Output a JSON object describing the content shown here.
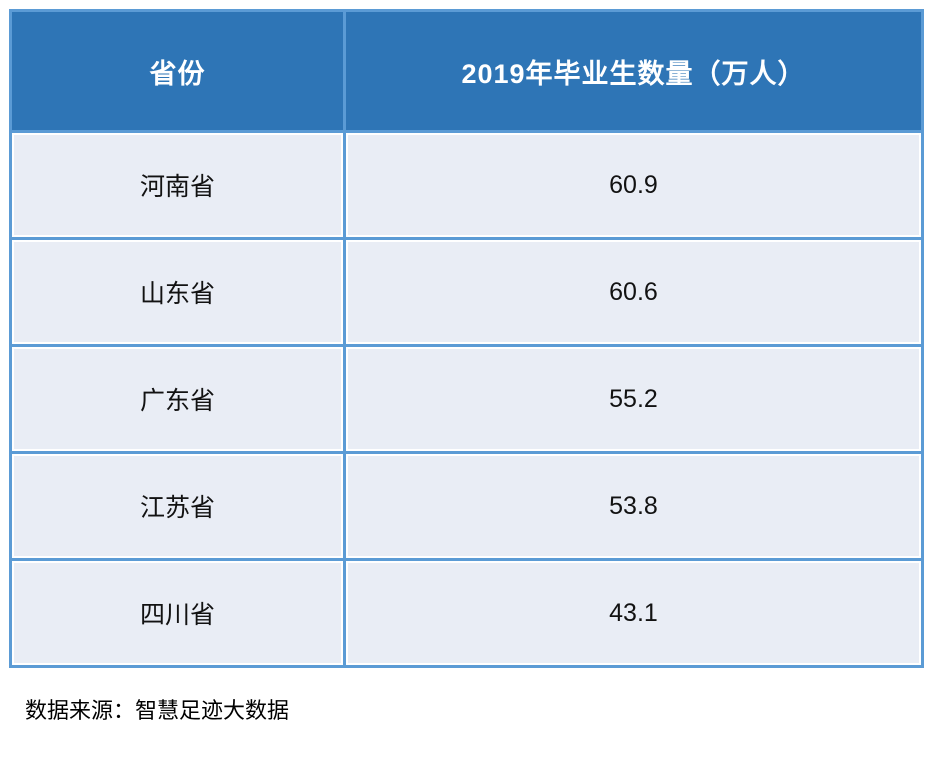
{
  "chart_data": {
    "type": "table",
    "title": "",
    "columns": [
      "省份",
      "2019年毕业生数量（万人）"
    ],
    "rows": [
      [
        "河南省",
        60.9
      ],
      [
        "山东省",
        60.6
      ],
      [
        "广东省",
        55.2
      ],
      [
        "江苏省",
        53.8
      ],
      [
        "四川省",
        43.1
      ]
    ],
    "source": "数据来源：智慧足迹大数据"
  },
  "table": {
    "header": {
      "province_label": "省份",
      "value_label": "2019年毕业生数量（万人）"
    },
    "rows": [
      {
        "province": "河南省",
        "value": "60.9"
      },
      {
        "province": "山东省",
        "value": "60.6"
      },
      {
        "province": "广东省",
        "value": "55.2"
      },
      {
        "province": "江苏省",
        "value": "53.8"
      },
      {
        "province": "四川省",
        "value": "43.1"
      }
    ]
  },
  "footer": {
    "source_label": "数据来源：智慧足迹大数据"
  },
  "colors": {
    "header_bg": "#2e75b6",
    "grid_border": "#5b9bd5",
    "row_bg": "#e9edf5",
    "header_text": "#ffffff",
    "body_text": "#121212"
  }
}
